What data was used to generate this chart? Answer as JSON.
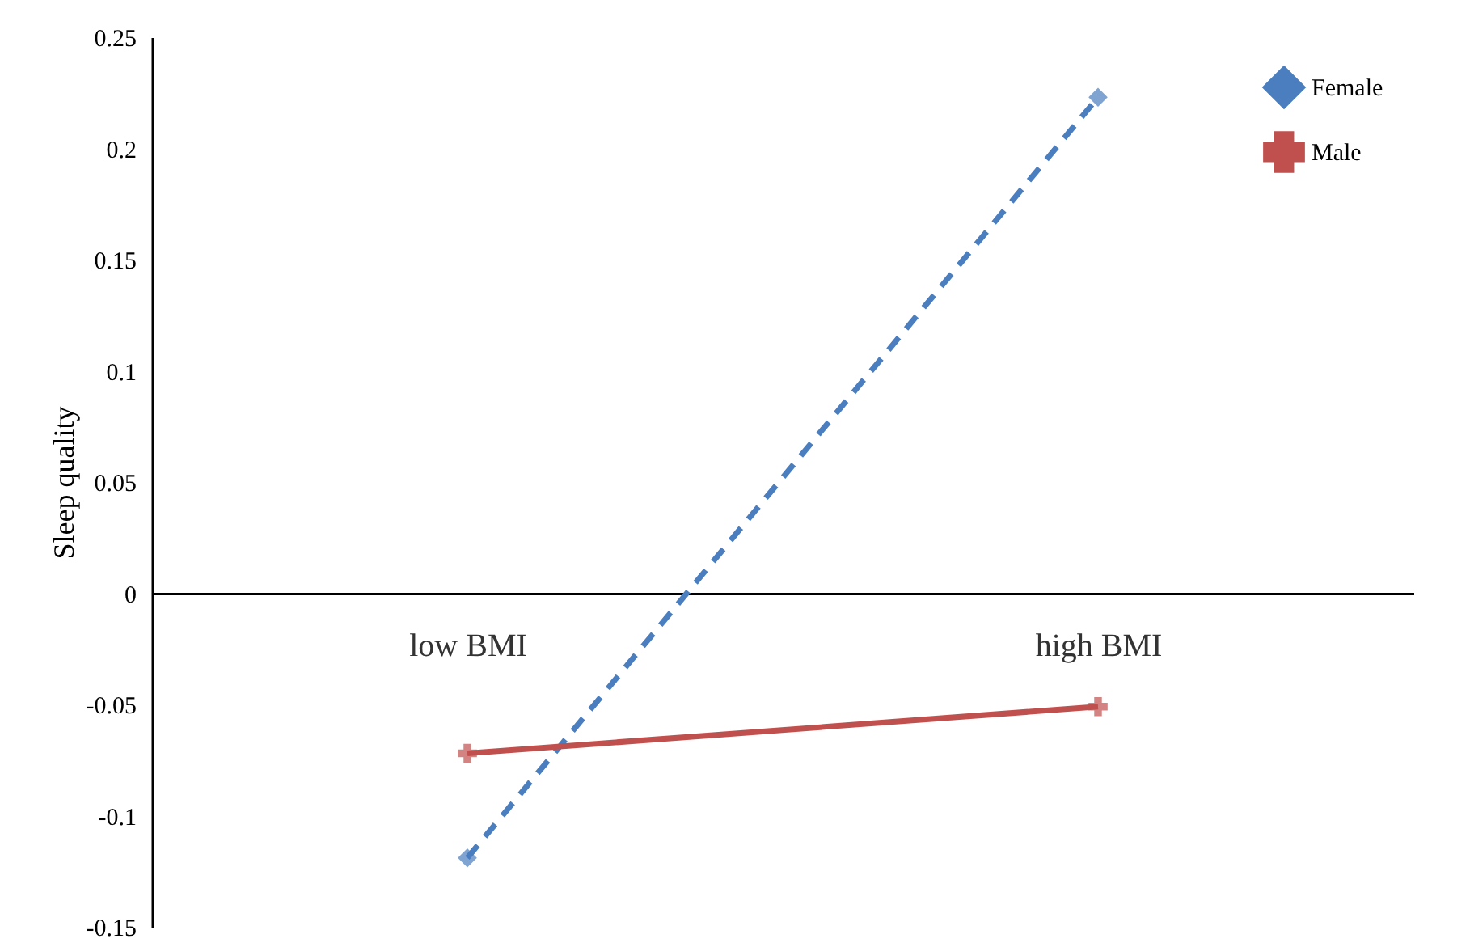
{
  "chart_data": {
    "type": "line",
    "ylabel": "Sleep quality",
    "categories": [
      "low BMI",
      "high BMI"
    ],
    "series": [
      {
        "name": "Female",
        "color": "#4a7ebf",
        "values": [
          -0.119,
          0.223
        ],
        "line_style": "dashed",
        "marker": "diamond"
      },
      {
        "name": "Male",
        "color": "#c0504d",
        "values": [
          -0.072,
          -0.051
        ],
        "line_style": "solid",
        "marker": "cross"
      }
    ],
    "ylim": [
      -0.15,
      0.25
    ],
    "yticks": [
      -0.15,
      -0.1,
      -0.05,
      0,
      0.05,
      0.1,
      0.15,
      0.2,
      0.25
    ],
    "grid": false,
    "legend": "top right"
  }
}
